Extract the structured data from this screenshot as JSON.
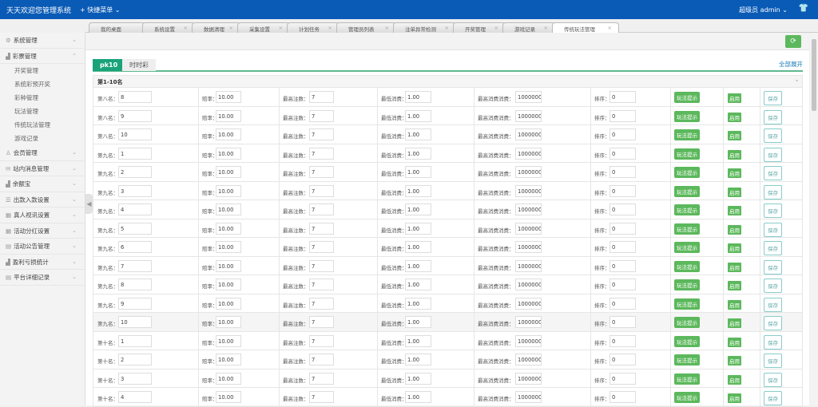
{
  "header": {
    "title": "天天欢迎您管理系统",
    "quick_menu": "+ 快捷菜单 ⌄",
    "user": "超级员  admin ⌄",
    "shirt_icon": "👕"
  },
  "tabs": [
    {
      "label": "我的桌面"
    },
    {
      "label": "系统设置"
    },
    {
      "label": "数据清理"
    },
    {
      "label": "采集设置"
    },
    {
      "label": "计划任务"
    },
    {
      "label": "管理员列表"
    },
    {
      "label": "注单异常检测"
    },
    {
      "label": "开奖管理"
    },
    {
      "label": "游戏记录"
    },
    {
      "label": "传统玩法管理",
      "active": true
    }
  ],
  "sidebar": {
    "items": [
      {
        "label": "系统管理",
        "icon": "⚙",
        "chev": "⌄"
      },
      {
        "label": "彩票管理",
        "icon": "▟",
        "chev": "⌃",
        "children": [
          "开奖管理",
          "系统彩预开奖",
          "彩种管理",
          "玩法管理",
          "传统玩法管理",
          "游戏记录"
        ]
      },
      {
        "label": "会员管理",
        "icon": "♙",
        "chev": "⌄"
      },
      {
        "label": "站内消息管理",
        "icon": "✉",
        "chev": "⌄"
      },
      {
        "label": "余额宝",
        "icon": "▟",
        "chev": "⌄"
      },
      {
        "label": "出款入款设置",
        "icon": "☰",
        "chev": "⌄"
      },
      {
        "label": "真人视讯设置",
        "icon": "▦",
        "chev": "⌄"
      },
      {
        "label": "活动分红设置",
        "icon": "▦",
        "chev": "⌄"
      },
      {
        "label": "活动公告管理",
        "icon": "▤",
        "chev": "⌄"
      },
      {
        "label": "盈利亏损统计",
        "icon": "▟",
        "chev": "⌄"
      },
      {
        "label": "平台详细记录",
        "icon": "▤",
        "chev": "⌄"
      }
    ]
  },
  "toolbar": {
    "refresh_icon": "⟳"
  },
  "main": {
    "expand_all": "全部展开",
    "tabs": [
      "pk10",
      "时时彩"
    ],
    "section": "第1-10名",
    "section_toggle": "-",
    "labels": {
      "odds": "赔率：",
      "max_bets": "最高注数：",
      "min_spend": "最低消费：",
      "max_spend": "最高消费消费：",
      "sort": "排序："
    },
    "buttons": {
      "tip": "玩法提示",
      "enable": "启用",
      "save": "保存"
    },
    "rows": [
      {
        "name": "第八名：",
        "num": "8",
        "odds": "10.00",
        "max_bets": "7",
        "min_spend": "1.00",
        "max_spend": "1000000.",
        "sort": "0"
      },
      {
        "name": "第八名：",
        "num": "9",
        "odds": "10.00",
        "max_bets": "7",
        "min_spend": "1.00",
        "max_spend": "1000000.",
        "sort": "0"
      },
      {
        "name": "第八名：",
        "num": "10",
        "odds": "10.00",
        "max_bets": "7",
        "min_spend": "1.00",
        "max_spend": "1000000.",
        "sort": "0"
      },
      {
        "name": "第九名：",
        "num": "1",
        "odds": "10.00",
        "max_bets": "7",
        "min_spend": "1.00",
        "max_spend": "1000000.",
        "sort": "0"
      },
      {
        "name": "第九名：",
        "num": "2",
        "odds": "10.00",
        "max_bets": "7",
        "min_spend": "1.00",
        "max_spend": "1000000.",
        "sort": "0"
      },
      {
        "name": "第九名：",
        "num": "3",
        "odds": "10.00",
        "max_bets": "7",
        "min_spend": "1.00",
        "max_spend": "1000000.",
        "sort": "0"
      },
      {
        "name": "第九名：",
        "num": "4",
        "odds": "10.00",
        "max_bets": "7",
        "min_spend": "1.00",
        "max_spend": "1000000.",
        "sort": "0"
      },
      {
        "name": "第九名：",
        "num": "5",
        "odds": "10.00",
        "max_bets": "7",
        "min_spend": "1.00",
        "max_spend": "1000000.",
        "sort": "0"
      },
      {
        "name": "第九名：",
        "num": "6",
        "odds": "10.00",
        "max_bets": "7",
        "min_spend": "1.00",
        "max_spend": "1000000.",
        "sort": "0"
      },
      {
        "name": "第九名：",
        "num": "7",
        "odds": "10.00",
        "max_bets": "7",
        "min_spend": "1.00",
        "max_spend": "1000000.",
        "sort": "0"
      },
      {
        "name": "第九名：",
        "num": "8",
        "odds": "10.00",
        "max_bets": "7",
        "min_spend": "1.00",
        "max_spend": "1000000.",
        "sort": "0"
      },
      {
        "name": "第九名：",
        "num": "9",
        "odds": "10.00",
        "max_bets": "7",
        "min_spend": "1.00",
        "max_spend": "1000000.",
        "sort": "0"
      },
      {
        "name": "第九名：",
        "num": "10",
        "odds": "10.00",
        "max_bets": "7",
        "min_spend": "1.00",
        "max_spend": "1000000.",
        "sort": "0",
        "highlighted": true
      },
      {
        "name": "第十名：",
        "num": "1",
        "odds": "10.00",
        "max_bets": "7",
        "min_spend": "1.00",
        "max_spend": "1000000.",
        "sort": "0"
      },
      {
        "name": "第十名：",
        "num": "2",
        "odds": "10.00",
        "max_bets": "7",
        "min_spend": "1.00",
        "max_spend": "1000000.",
        "sort": "0"
      },
      {
        "name": "第十名：",
        "num": "3",
        "odds": "10.00",
        "max_bets": "7",
        "min_spend": "1.00",
        "max_spend": "1000000.",
        "sort": "0"
      },
      {
        "name": "第十名：",
        "num": "4",
        "odds": "10.00",
        "max_bets": "7",
        "min_spend": "1.00",
        "max_spend": "1000000.",
        "sort": "0"
      }
    ]
  },
  "colors": {
    "header": "#0a5bb6",
    "accent": "#1aa37a",
    "button_green": "#5cb85c"
  }
}
